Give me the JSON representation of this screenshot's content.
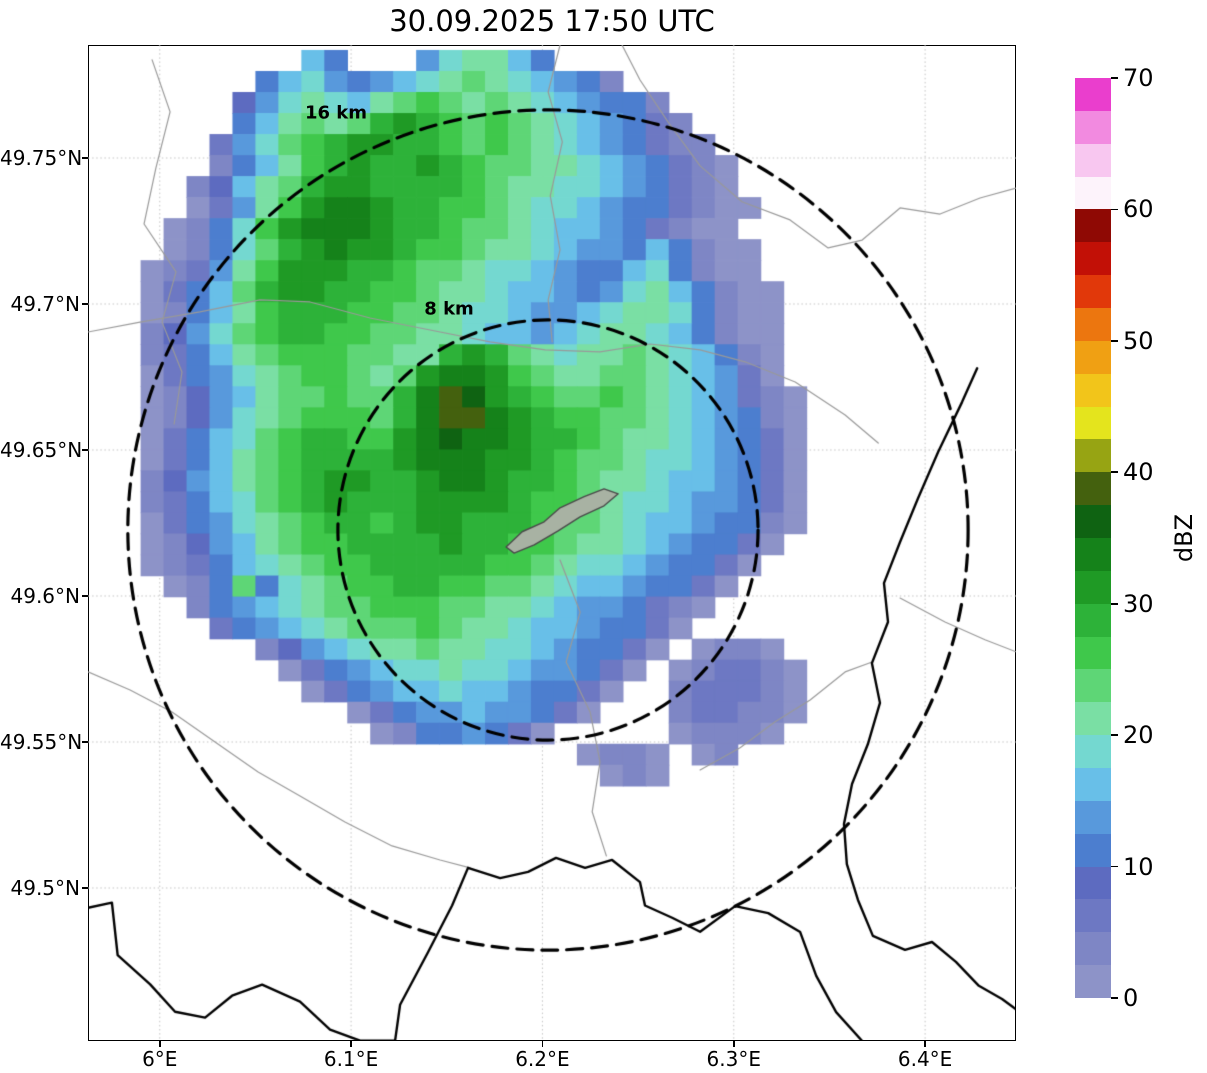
{
  "title": "30.09.2025 17:50 UTC",
  "axes": {
    "x_ticks": [
      {
        "value": 6.0,
        "label": "6°E"
      },
      {
        "value": 6.1,
        "label": "6.1°E"
      },
      {
        "value": 6.2,
        "label": "6.2°E"
      },
      {
        "value": 6.3,
        "label": "6.3°E"
      },
      {
        "value": 6.4,
        "label": "6.4°E"
      }
    ],
    "y_ticks": [
      {
        "value": 49.5,
        "label": "49.5°N"
      },
      {
        "value": 49.55,
        "label": "49.55°N"
      },
      {
        "value": 49.6,
        "label": "49.6°N"
      },
      {
        "value": 49.65,
        "label": "49.65°N"
      },
      {
        "value": 49.7,
        "label": "49.7°N"
      },
      {
        "value": 49.75,
        "label": "49.75°N"
      }
    ],
    "lon_range": [
      5.9625,
      6.4475
    ],
    "lat_range": [
      49.4476,
      49.7887
    ]
  },
  "colorbar": {
    "label": "dBZ",
    "ticks": [
      0,
      10,
      20,
      30,
      40,
      50,
      60,
      70
    ],
    "vmin": 0,
    "vmax": 70,
    "step_dbz": 2.5,
    "colors": [
      "#8d93c8",
      "#7e86c5",
      "#6d78c3",
      "#5d6bc0",
      "#4c7ecf",
      "#5899dc",
      "#68bfe8",
      "#74d8d0",
      "#7adfa4",
      "#5ed676",
      "#3fc84b",
      "#2db239",
      "#1f9a25",
      "#15821a",
      "#0f6312",
      "#44610e",
      "#97a413",
      "#e4e41d",
      "#f2c51a",
      "#f0a013",
      "#ec760f",
      "#e1380a",
      "#c21006",
      "#8f0904",
      "#fdf3fb",
      "#f8c7f0",
      "#f28ae0",
      "#ea3ecd"
    ]
  },
  "range_rings": {
    "center": {
      "lon": 6.2029,
      "lat": 49.6226
    },
    "rings": [
      {
        "radius_km": 8,
        "label": "8 km",
        "label_lon": 6.1512,
        "label_lat": 49.6983
      },
      {
        "radius_km": 16,
        "label": "16 km",
        "label_lon": 6.0921,
        "label_lat": 49.7654
      }
    ]
  },
  "chart_data": {
    "type": "heatmap",
    "title": "30.09.2025 17:50 UTC",
    "units": "dBZ",
    "x_axis": "longitude_deg_E",
    "y_axis": "latitude_deg_N",
    "grid": {
      "lon_start": 5.99,
      "lon_step": 0.012,
      "lat_start": 49.787,
      "lat_step": -0.0072,
      "ncols": 30,
      "nrows": 36
    },
    "encoding": "each char: '.' = no echo; otherwise base-36 bin index 0-15 ('0'-'9','A'-'F'); dBZ = index*2.5 to (index+1)*2.5",
    "rows": [
      ".......64...578864............",
      ".....4675456789876541.........",
      "....35787689A9898765441.......",
      "....468989BCBA9A98765421......",
      "...2579ABCCBBA9A987654211.....",
      "...1468ABCBBCBA99887654210....",
      "..13689BCCBBBBA98877654210....",
      "..0258ACDDCBBAA987765442100...",
      ".0147ACDDDCBBA998766542100....",
      ".01479BCDCCBAA9887655464100...",
      "01258ACCCBBA998776544674100...",
      "02469BCCBBAA9887665457864100..",
      "01468ABBBAA99877655678874100..",
      "13579ABBAA998876656788764100..",
      "124689AAA9988BCB987889876410..",
      "0245789AA989CDDCA98899876520..",
      "01356899A99BDFECBA99A98765210.",
      "0135789AAA9BDFFDCBAA998765410.",
      "024679ABBAACDEDDCBBA988765420.",
      "024689ABBBBCDDDCCBA9987765420.",
      "135689ABCCBBCDDCBBA9887665420.",
      "124679ABCBBBCCCCBAA9877655420.",
      "0245789ABBABCCBBBA99876654410.",
      "0135689AABBBBCBBAA9887654420..",
      "01246789AABBBBBAA9877654420...",
      ".01494789AABBAA99876654420....",
      "..14567899AAA998876554210.....",
      "...245678999A98876654420......",
      ".....135678898877654420.0110..",
      "......0245677877655420.012210.",
      ".......02456676654420..122210.",
      ".........02455655420...122110.",
      "..........01445420.....01110..",
      "...................0110.01....",
      "....................010.......",
      ".............................."
    ]
  },
  "map_layers": {
    "black_borders": [
      [
        [
          5.9625,
          49.4932
        ],
        [
          5.975,
          49.495
        ],
        [
          5.978,
          49.477
        ],
        [
          5.995,
          49.467
        ],
        [
          6.008,
          49.4576
        ],
        [
          6.0237,
          49.4556
        ],
        [
          6.0378,
          49.4631
        ],
        [
          6.0535,
          49.4669
        ],
        [
          6.0733,
          49.4611
        ],
        [
          6.089,
          49.4515
        ],
        [
          6.1047,
          49.4477
        ],
        [
          6.123,
          49.4477
        ],
        [
          6.1256,
          49.46
        ],
        [
          6.1402,
          49.478
        ],
        [
          6.1528,
          49.494
        ],
        [
          6.1611,
          49.5069
        ],
        [
          6.1779,
          49.5034
        ],
        [
          6.1925,
          49.5055
        ],
        [
          6.2071,
          49.5103
        ],
        [
          6.2223,
          49.5069
        ],
        [
          6.2364,
          49.5096
        ],
        [
          6.251,
          49.502
        ],
        [
          6.2536,
          49.494
        ],
        [
          6.2678,
          49.4898
        ],
        [
          6.2824,
          49.485
        ],
        [
          6.3007,
          49.4938
        ],
        [
          6.318,
          49.4914
        ],
        [
          6.3347,
          49.4849
        ],
        [
          6.3431,
          49.4699
        ],
        [
          6.3535,
          49.4575
        ],
        [
          6.3671,
          49.4476
        ]
      ],
      [
        [
          6.4272,
          49.678
        ],
        [
          6.4193,
          49.6664
        ],
        [
          6.4068,
          49.6493
        ],
        [
          6.3963,
          49.6335
        ],
        [
          6.3869,
          49.6185
        ],
        [
          6.3785,
          49.6044
        ],
        [
          6.3806,
          49.5911
        ],
        [
          6.3722,
          49.577
        ],
        [
          6.3764,
          49.5634
        ],
        [
          6.3701,
          49.5493
        ],
        [
          6.3618,
          49.5356
        ],
        [
          6.3576,
          49.5219
        ],
        [
          6.3591,
          49.5082
        ],
        [
          6.3649,
          49.4959
        ],
        [
          6.3727,
          49.4836
        ],
        [
          6.3895,
          49.4788
        ],
        [
          6.4036,
          49.4815
        ],
        [
          6.4161,
          49.4747
        ],
        [
          6.4281,
          49.4665
        ],
        [
          6.4402,
          49.462
        ],
        [
          6.4475,
          49.4585
        ]
      ]
    ],
    "gray_borders": [
      [
        [
          5.996,
          49.7836
        ],
        [
          6.0054,
          49.7658
        ],
        [
          5.998,
          49.7466
        ],
        [
          5.9918,
          49.7274
        ],
        [
          6.0085,
          49.711
        ],
        [
          6.0012,
          49.6938
        ],
        [
          6.0116,
          49.6767
        ],
        [
          6.0075,
          49.6589
        ]
      ],
      [
        [
          5.9625,
          49.6904
        ],
        [
          5.9897,
          49.6938
        ],
        [
          6.021,
          49.6973
        ],
        [
          6.0524,
          49.7014
        ],
        [
          6.0785,
          49.7007
        ],
        [
          6.1099,
          49.6952
        ],
        [
          6.1413,
          49.6911
        ],
        [
          6.1726,
          49.687
        ],
        [
          6.2014,
          49.6843
        ],
        [
          6.2301,
          49.6836
        ],
        [
          6.2563,
          49.6863
        ],
        [
          6.2824,
          49.6843
        ],
        [
          6.3059,
          49.6802
        ],
        [
          6.3321,
          49.6733
        ],
        [
          6.3582,
          49.662
        ],
        [
          6.3755,
          49.6524
        ]
      ],
      [
        [
          6.2092,
          49.7887
        ],
        [
          6.203,
          49.7726
        ],
        [
          6.2104,
          49.7555
        ],
        [
          6.2041,
          49.737
        ],
        [
          6.2092,
          49.7185
        ],
        [
          6.203,
          49.7014
        ],
        [
          6.2051,
          49.687
        ]
      ],
      [
        [
          6.2416,
          49.7887
        ],
        [
          6.251,
          49.7767
        ],
        [
          6.2657,
          49.7623
        ],
        [
          6.2824,
          49.7473
        ],
        [
          6.3043,
          49.735
        ],
        [
          6.3294,
          49.7288
        ],
        [
          6.3493,
          49.7192
        ],
        [
          6.3671,
          49.7219
        ],
        [
          6.3869,
          49.7329
        ],
        [
          6.4078,
          49.7308
        ],
        [
          6.4287,
          49.7363
        ],
        [
          6.4475,
          49.7397
        ]
      ],
      [
        [
          5.9625,
          49.574
        ],
        [
          5.9845,
          49.5678
        ],
        [
          6.0064,
          49.5603
        ],
        [
          6.0289,
          49.55
        ],
        [
          6.0514,
          49.5397
        ],
        [
          6.0733,
          49.5315
        ],
        [
          6.0968,
          49.5226
        ],
        [
          6.1214,
          49.5144
        ],
        [
          6.1465,
          49.5096
        ],
        [
          6.1622,
          49.5069
        ]
      ],
      [
        [
          6.2824,
          49.5404
        ],
        [
          6.3033,
          49.548
        ],
        [
          6.3216,
          49.5569
        ],
        [
          6.3399,
          49.5644
        ],
        [
          6.3582,
          49.574
        ],
        [
          6.3723,
          49.5774
        ]
      ],
      [
        [
          6.2092,
          49.6123
        ],
        [
          6.2197,
          49.5945
        ],
        [
          6.2124,
          49.5774
        ],
        [
          6.2249,
          49.5603
        ],
        [
          6.2301,
          49.5432
        ],
        [
          6.226,
          49.5261
        ],
        [
          6.2334,
          49.511
        ]
      ],
      [
        [
          6.3869,
          49.5993
        ],
        [
          6.4104,
          49.5911
        ],
        [
          6.4313,
          49.585
        ],
        [
          6.4475,
          49.5809
        ]
      ]
    ],
    "urban_area_polygon": [
      [
        6.181,
        49.6168
      ],
      [
        6.1894,
        49.622
      ],
      [
        6.2009,
        49.6254
      ],
      [
        6.2092,
        49.6302
      ],
      [
        6.2218,
        49.634
      ],
      [
        6.2322,
        49.6367
      ],
      [
        6.2396,
        49.635
      ],
      [
        6.2322,
        49.6309
      ],
      [
        6.2197,
        49.6271
      ],
      [
        6.2082,
        49.6223
      ],
      [
        6.1957,
        49.6175
      ],
      [
        6.1852,
        49.6147
      ]
    ]
  }
}
